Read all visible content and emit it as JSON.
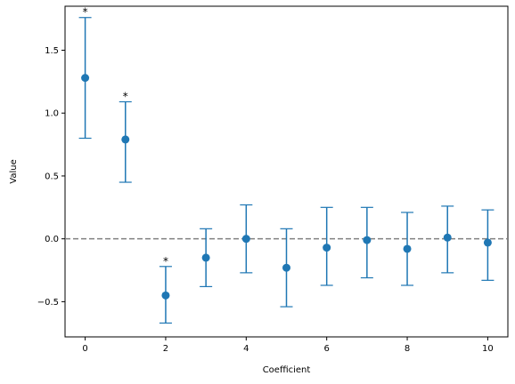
{
  "chart_data": {
    "type": "scatter",
    "title": "",
    "xlabel": "Coefficient",
    "ylabel": "Value",
    "xlim": [
      -0.5,
      10.5
    ],
    "ylim": [
      -0.78,
      1.85
    ],
    "xticks": [
      "0",
      "2",
      "4",
      "6",
      "8",
      "10"
    ],
    "yticks": [
      "−0.5",
      "0.0",
      "0.5",
      "1.0",
      "1.5"
    ],
    "reference_line": {
      "y": 0,
      "style": "dashed",
      "color": "#808080"
    },
    "grid": false,
    "marker_color": "#1f77b4",
    "points": [
      {
        "x": 0,
        "y": 1.28,
        "lower": 0.8,
        "upper": 1.76,
        "label": "*"
      },
      {
        "x": 1,
        "y": 0.79,
        "lower": 0.45,
        "upper": 1.09,
        "label": "*"
      },
      {
        "x": 2,
        "y": -0.45,
        "lower": -0.67,
        "upper": -0.22,
        "label": "*"
      },
      {
        "x": 3,
        "y": -0.15,
        "lower": -0.38,
        "upper": 0.08,
        "label": ""
      },
      {
        "x": 4,
        "y": 0.0,
        "lower": -0.27,
        "upper": 0.27,
        "label": ""
      },
      {
        "x": 5,
        "y": -0.23,
        "lower": -0.54,
        "upper": 0.08,
        "label": ""
      },
      {
        "x": 6,
        "y": -0.07,
        "lower": -0.37,
        "upper": 0.25,
        "label": ""
      },
      {
        "x": 7,
        "y": -0.01,
        "lower": -0.31,
        "upper": 0.25,
        "label": ""
      },
      {
        "x": 8,
        "y": -0.08,
        "lower": -0.37,
        "upper": 0.21,
        "label": ""
      },
      {
        "x": 9,
        "y": 0.01,
        "lower": -0.27,
        "upper": 0.26,
        "label": ""
      },
      {
        "x": 10,
        "y": -0.03,
        "lower": -0.33,
        "upper": 0.23,
        "label": ""
      }
    ]
  }
}
